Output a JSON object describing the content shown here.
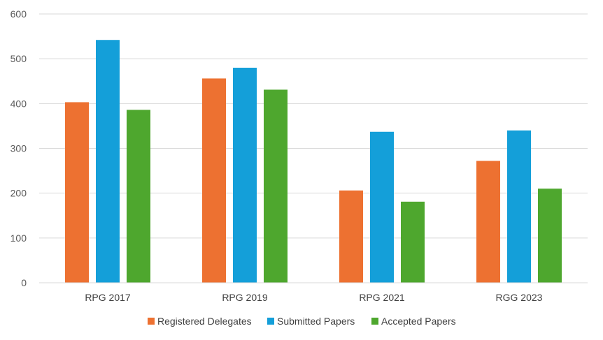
{
  "chart_data": {
    "type": "bar",
    "categories": [
      "RPG 2017",
      "RPG 2019",
      "RPG 2021",
      "RGG 2023"
    ],
    "series": [
      {
        "name": "Registered Delegates",
        "values": [
          403,
          456,
          206,
          272
        ],
        "color": "#ED7131"
      },
      {
        "name": "Submitted Papers",
        "values": [
          542,
          480,
          337,
          340
        ],
        "color": "#149FD9"
      },
      {
        "name": "Accepted Papers",
        "values": [
          386,
          431,
          181,
          210
        ],
        "color": "#4EA72E"
      }
    ],
    "ylim": [
      0,
      600
    ],
    "yticks": [
      "0",
      "100",
      "200",
      "300",
      "400",
      "500",
      "600"
    ],
    "grid": true,
    "legend_position": "bottom"
  }
}
